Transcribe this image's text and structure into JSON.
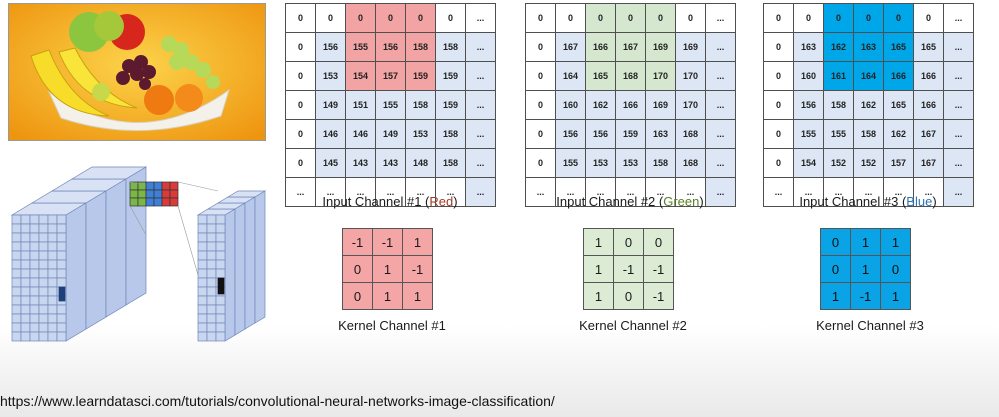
{
  "input_channels": [
    {
      "caption_prefix": "Input Channel #1 (",
      "caption_color_word": "Red",
      "caption_suffix": ")",
      "color": "#a23b2a",
      "highlight_class": "hl-red",
      "rows": [
        [
          "0",
          "0",
          "0",
          "0",
          "0",
          "0",
          "..."
        ],
        [
          "0",
          "156",
          "155",
          "156",
          "158",
          "158",
          "..."
        ],
        [
          "0",
          "153",
          "154",
          "157",
          "159",
          "159",
          "..."
        ],
        [
          "0",
          "149",
          "151",
          "155",
          "158",
          "159",
          "..."
        ],
        [
          "0",
          "146",
          "146",
          "149",
          "153",
          "158",
          "..."
        ],
        [
          "0",
          "145",
          "143",
          "143",
          "148",
          "158",
          "..."
        ],
        [
          "...",
          "...",
          "...",
          "...",
          "...",
          "...",
          "..."
        ]
      ]
    },
    {
      "caption_prefix": "Input Channel #2 (",
      "caption_color_word": "Green",
      "caption_suffix": ")",
      "color": "#5a7f2a",
      "highlight_class": "hl-green",
      "rows": [
        [
          "0",
          "0",
          "0",
          "0",
          "0",
          "0",
          "..."
        ],
        [
          "0",
          "167",
          "166",
          "167",
          "169",
          "169",
          "..."
        ],
        [
          "0",
          "164",
          "165",
          "168",
          "170",
          "170",
          "..."
        ],
        [
          "0",
          "160",
          "162",
          "166",
          "169",
          "170",
          "..."
        ],
        [
          "0",
          "156",
          "156",
          "159",
          "163",
          "168",
          "..."
        ],
        [
          "0",
          "155",
          "153",
          "153",
          "158",
          "168",
          "..."
        ],
        [
          "...",
          "...",
          "...",
          "...",
          "...",
          "...",
          "..."
        ]
      ]
    },
    {
      "caption_prefix": "Input Channel #3 (",
      "caption_color_word": "Blue",
      "caption_suffix": ")",
      "color": "#2e74b5",
      "highlight_class": "hl-blue",
      "rows": [
        [
          "0",
          "0",
          "0",
          "0",
          "0",
          "0",
          "..."
        ],
        [
          "0",
          "163",
          "162",
          "163",
          "165",
          "165",
          "..."
        ],
        [
          "0",
          "160",
          "161",
          "164",
          "166",
          "166",
          "..."
        ],
        [
          "0",
          "156",
          "158",
          "162",
          "165",
          "166",
          "..."
        ],
        [
          "0",
          "155",
          "155",
          "158",
          "162",
          "167",
          "..."
        ],
        [
          "0",
          "154",
          "152",
          "152",
          "157",
          "167",
          "..."
        ],
        [
          "...",
          "...",
          "...",
          "...",
          "...",
          "...",
          "..."
        ]
      ]
    }
  ],
  "kernels": [
    {
      "caption": "Kernel Channel #1",
      "rows": [
        [
          "-1",
          "-1",
          "1"
        ],
        [
          "0",
          "1",
          "-1"
        ],
        [
          "0",
          "1",
          "1"
        ]
      ]
    },
    {
      "caption": "Kernel Channel #2",
      "rows": [
        [
          "1",
          "0",
          "0"
        ],
        [
          "1",
          "-1",
          "-1"
        ],
        [
          "1",
          "0",
          "-1"
        ]
      ]
    },
    {
      "caption": "Kernel Channel #3",
      "rows": [
        [
          "0",
          "1",
          "1"
        ],
        [
          "0",
          "1",
          "0"
        ],
        [
          "1",
          "-1",
          "1"
        ]
      ]
    }
  ],
  "source_url": "https://www.learndatasci.com/tutorials/convolutional-neural-networks-image-classification/",
  "colors": {
    "red_highlight": "#f2a3a3",
    "green_highlight": "#d5e8cf",
    "blue_highlight": "#00a7e8",
    "matrix_body": "#dde6f5",
    "cube_face": "#c9d6f0"
  }
}
